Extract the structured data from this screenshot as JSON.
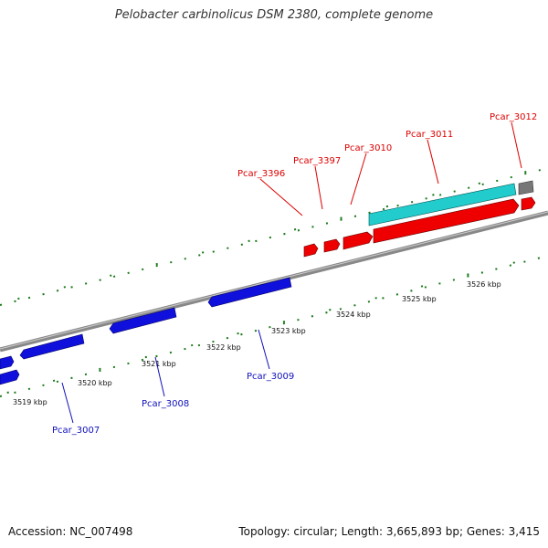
{
  "title": "Pelobacter carbinolicus DSM 2380, complete genome",
  "footer": {
    "accession": "Accession: NC_007498",
    "topology": "Topology: circular; Length: 3,665,893 bp; Genes: 3,415"
  },
  "colors": {
    "forward_gene": "#ee0000",
    "reverse_gene": "#1010dd",
    "rna_gene": "#22cccc",
    "other_feature": "#777777",
    "backbone": "#888888",
    "ticks": "#1a7a1a",
    "forward_label": "#dd0000",
    "reverse_label": "#1010bb"
  },
  "scale_labels": [
    "3519 kbp",
    "3520 kbp",
    "3521 kbp",
    "3522 kbp",
    "3523 kbp",
    "3524 kbp",
    "3525 kbp",
    "3526 kbp"
  ],
  "forward_genes": [
    "Pcar_3396",
    "Pcar_3397",
    "Pcar_3010",
    "Pcar_3011",
    "Pcar_3012"
  ],
  "reverse_genes": [
    "Pcar_3007",
    "Pcar_3008",
    "Pcar_3009"
  ]
}
